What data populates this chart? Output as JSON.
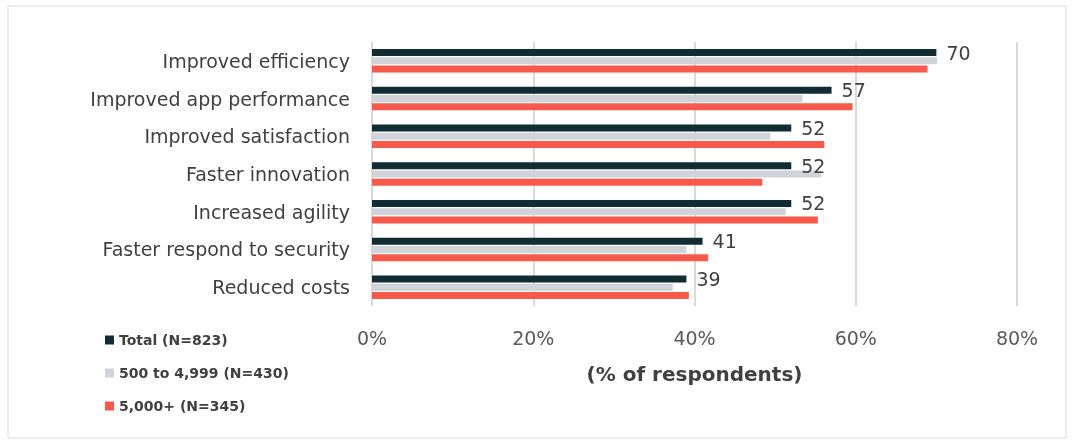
{
  "chart_data": {
    "type": "bar",
    "orientation": "horizontal",
    "xlabel": "(% of respondents)",
    "categories": [
      "Improved efficiency",
      "Improved app performance",
      "Improved satisfaction",
      "Faster innovation",
      "Increased agility",
      "Faster respond to security",
      "Reduced costs"
    ],
    "series": [
      {
        "name": "Total (N=823)",
        "color": "#0f2d32",
        "values": [
          70,
          57,
          52,
          52,
          52,
          41,
          39
        ],
        "value_labels": [
          "70",
          "57",
          "52",
          "52",
          "52",
          "41",
          "39"
        ]
      },
      {
        "name": "500 to 4,999 (N=430)",
        "color": "#d0d3d8",
        "values": [
          70.1,
          53.4,
          49.4,
          55.7,
          51.3,
          39.0,
          37.3
        ]
      },
      {
        "name": "5,000+ (N=345)",
        "color": "#f9594a",
        "values": [
          68.9,
          59.6,
          56.1,
          48.4,
          55.3,
          41.7,
          39.3
        ]
      }
    ],
    "xlim": [
      0,
      80
    ],
    "xticks": [
      {
        "value": 0,
        "label": "0%"
      },
      {
        "value": 20,
        "label": "20%"
      },
      {
        "value": 40,
        "label": "40%"
      },
      {
        "value": 60,
        "label": "60%"
      },
      {
        "value": 80,
        "label": "80%"
      }
    ],
    "grid": "x",
    "legend": "bottom left"
  }
}
